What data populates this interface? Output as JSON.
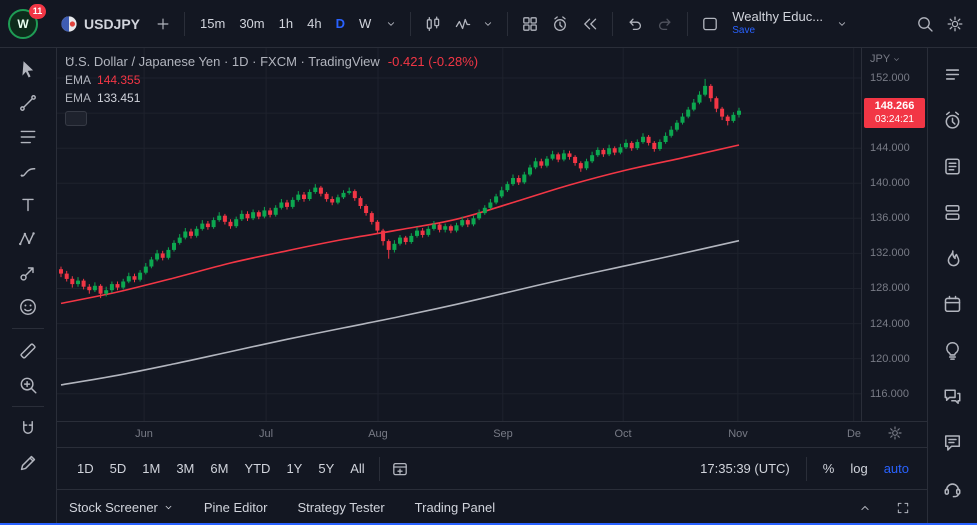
{
  "colors": {
    "bg": "#131722",
    "border": "#2a2e39",
    "text": "#d1d4dc",
    "muted": "#787b86",
    "accent": "#2962ff",
    "up": "#0ca750",
    "down": "#f23645",
    "ema_fast": "#f23645",
    "ema_slow": "#b2b5be",
    "badge": "#f23645",
    "grid": "#1e222d"
  },
  "header": {
    "notification_count": "11",
    "logo_letter": "W",
    "symbol": "USDJPY",
    "timeframes": [
      "15m",
      "30m",
      "1h",
      "4h",
      "D",
      "W"
    ],
    "active_timeframe": "D",
    "account_name": "Wealthy Educ...",
    "save_label": "Save"
  },
  "left_toolbar": {
    "tools": [
      "cursor-icon",
      "trend-line-icon",
      "fib-retracement-icon",
      "brush-icon",
      "text-icon",
      "xabcd-pattern-icon",
      "forecast-icon",
      "emoji-icon",
      "divider",
      "ruler-icon",
      "zoom-icon",
      "divider",
      "magnet-icon",
      "edit-icon"
    ]
  },
  "right_sidebar": {
    "panels": [
      "watchlist-icon",
      "alerts-icon",
      "news-icon",
      "object-tree-icon",
      "hotlists-icon",
      "calendar-icon",
      "ideas-icon",
      "chats-icon",
      "comments-icon",
      "support-icon"
    ]
  },
  "chart": {
    "legend": {
      "title": "U.S. Dollar / Japanese Yen · 1D · FXCM · TradingView",
      "change": "-0.421 (-0.28%)",
      "indicators": [
        {
          "label": "EMA",
          "value": "144.355"
        },
        {
          "label": "EMA",
          "value": "133.451"
        }
      ]
    },
    "price_scale": {
      "currency": "JPY",
      "last_price": "148.266",
      "countdown": "03:24:21"
    }
  },
  "chart_data": {
    "type": "candlestick",
    "symbol": "USDJPY",
    "interval": "1D",
    "title": "U.S. Dollar / Japanese Yen",
    "y_axis": {
      "ticks": [
        152,
        148,
        144,
        140,
        136,
        132,
        128,
        124,
        120,
        116
      ],
      "decimals": 3
    },
    "x_axis": {
      "labels": [
        "Jun",
        "Jul",
        "Aug",
        "Sep",
        "Oct",
        "Nov",
        "De"
      ],
      "candle_index": [
        14.7,
        36.3,
        56.1,
        78.2,
        99.5,
        119.8,
        140.3
      ]
    },
    "last_price": 148.266,
    "change": -0.421,
    "change_pct": "-0.28%",
    "candles": [
      [
        130.2,
        130.5,
        129.3,
        129.7
      ],
      [
        129.7,
        130.0,
        128.8,
        129.1
      ],
      [
        129.1,
        129.4,
        128.1,
        128.5
      ],
      [
        128.5,
        129.3,
        128.2,
        128.9
      ],
      [
        128.9,
        129.1,
        127.9,
        128.2
      ],
      [
        128.2,
        128.5,
        127.4,
        127.8
      ],
      [
        127.8,
        128.7,
        127.6,
        128.3
      ],
      [
        128.3,
        128.5,
        126.9,
        127.4
      ],
      [
        127.4,
        128.2,
        127.1,
        127.8
      ],
      [
        127.8,
        128.8,
        127.5,
        128.5
      ],
      [
        128.5,
        128.8,
        127.8,
        128.1
      ],
      [
        128.1,
        129.1,
        127.9,
        128.8
      ],
      [
        128.8,
        129.8,
        128.6,
        129.4
      ],
      [
        129.4,
        129.7,
        128.7,
        129.0
      ],
      [
        129.0,
        130.1,
        128.8,
        129.8
      ],
      [
        129.8,
        130.9,
        129.6,
        130.5
      ],
      [
        130.5,
        131.6,
        130.3,
        131.3
      ],
      [
        131.3,
        132.4,
        131.1,
        132.0
      ],
      [
        132.0,
        132.3,
        131.2,
        131.5
      ],
      [
        131.5,
        132.7,
        131.3,
        132.4
      ],
      [
        132.4,
        133.5,
        132.2,
        133.2
      ],
      [
        133.2,
        134.2,
        133.0,
        133.8
      ],
      [
        133.8,
        134.9,
        133.6,
        134.5
      ],
      [
        134.5,
        134.8,
        133.7,
        134.0
      ],
      [
        134.0,
        135.1,
        133.8,
        134.8
      ],
      [
        134.8,
        135.8,
        134.6,
        135.4
      ],
      [
        135.4,
        135.7,
        134.7,
        135.0
      ],
      [
        135.0,
        136.1,
        134.8,
        135.8
      ],
      [
        135.8,
        136.7,
        135.6,
        136.3
      ],
      [
        136.3,
        136.5,
        135.3,
        135.6
      ],
      [
        135.6,
        135.9,
        134.8,
        135.1
      ],
      [
        135.1,
        136.2,
        134.9,
        135.9
      ],
      [
        135.9,
        136.9,
        135.7,
        136.5
      ],
      [
        136.5,
        136.8,
        135.7,
        136.0
      ],
      [
        136.0,
        137.0,
        135.8,
        136.7
      ],
      [
        136.7,
        136.9,
        135.9,
        136.2
      ],
      [
        136.2,
        137.3,
        136.0,
        136.9
      ],
      [
        136.9,
        137.2,
        136.1,
        136.4
      ],
      [
        136.4,
        137.5,
        136.2,
        137.2
      ],
      [
        137.2,
        138.2,
        137.0,
        137.8
      ],
      [
        137.8,
        138.1,
        137.0,
        137.3
      ],
      [
        137.3,
        138.4,
        137.1,
        138.1
      ],
      [
        138.1,
        139.1,
        137.9,
        138.7
      ],
      [
        138.7,
        139.0,
        137.9,
        138.2
      ],
      [
        138.2,
        139.3,
        138.0,
        139.0
      ],
      [
        139.0,
        139.9,
        138.8,
        139.5
      ],
      [
        139.5,
        139.7,
        138.5,
        138.8
      ],
      [
        138.8,
        139.0,
        137.9,
        138.2
      ],
      [
        138.2,
        138.5,
        137.5,
        137.8
      ],
      [
        137.8,
        138.7,
        137.6,
        138.4
      ],
      [
        138.4,
        139.2,
        138.2,
        138.9
      ],
      [
        138.9,
        139.5,
        138.7,
        139.1
      ],
      [
        139.1,
        139.3,
        138.0,
        138.3
      ],
      [
        138.3,
        138.5,
        137.1,
        137.4
      ],
      [
        137.4,
        137.6,
        136.3,
        136.6
      ],
      [
        136.6,
        136.8,
        135.3,
        135.6
      ],
      [
        135.6,
        135.8,
        134.2,
        134.6
      ],
      [
        134.6,
        134.8,
        132.9,
        133.4
      ],
      [
        133.4,
        133.6,
        131.4,
        132.4
      ],
      [
        132.4,
        133.5,
        132.1,
        133.1
      ],
      [
        133.1,
        134.1,
        132.9,
        133.8
      ],
      [
        133.8,
        134.0,
        133.0,
        133.3
      ],
      [
        133.3,
        134.3,
        133.1,
        134.0
      ],
      [
        134.0,
        135.0,
        133.8,
        134.6
      ],
      [
        134.6,
        134.9,
        133.8,
        134.1
      ],
      [
        134.1,
        135.1,
        133.9,
        134.8
      ],
      [
        134.8,
        135.7,
        134.6,
        135.3
      ],
      [
        135.3,
        135.5,
        134.4,
        134.7
      ],
      [
        134.7,
        135.4,
        134.4,
        135.1
      ],
      [
        135.1,
        135.3,
        134.3,
        134.6
      ],
      [
        134.6,
        135.5,
        134.4,
        135.2
      ],
      [
        135.2,
        136.2,
        135.0,
        135.8
      ],
      [
        135.8,
        136.0,
        135.0,
        135.3
      ],
      [
        135.3,
        136.3,
        135.1,
        136.0
      ],
      [
        136.0,
        137.0,
        135.8,
        136.6
      ],
      [
        136.6,
        137.5,
        136.4,
        137.2
      ],
      [
        137.2,
        138.2,
        137.0,
        137.8
      ],
      [
        137.8,
        138.8,
        137.6,
        138.5
      ],
      [
        138.5,
        139.6,
        138.3,
        139.2
      ],
      [
        139.2,
        140.2,
        139.0,
        139.9
      ],
      [
        139.9,
        141.0,
        139.7,
        140.6
      ],
      [
        140.6,
        140.9,
        139.8,
        140.1
      ],
      [
        140.1,
        141.3,
        139.9,
        141.0
      ],
      [
        141.0,
        142.1,
        140.8,
        141.8
      ],
      [
        141.8,
        142.9,
        141.6,
        142.5
      ],
      [
        142.5,
        142.8,
        141.7,
        142.0
      ],
      [
        142.0,
        143.1,
        141.8,
        142.8
      ],
      [
        142.8,
        143.7,
        142.6,
        143.3
      ],
      [
        143.3,
        143.5,
        142.4,
        142.7
      ],
      [
        142.7,
        143.8,
        142.5,
        143.4
      ],
      [
        143.4,
        143.7,
        142.7,
        143.0
      ],
      [
        143.0,
        143.2,
        142.0,
        142.3
      ],
      [
        142.3,
        142.5,
        141.3,
        141.7
      ],
      [
        141.7,
        142.8,
        141.5,
        142.5
      ],
      [
        142.5,
        143.6,
        142.3,
        143.2
      ],
      [
        143.2,
        144.1,
        143.0,
        143.8
      ],
      [
        143.8,
        144.0,
        143.0,
        143.3
      ],
      [
        143.3,
        144.4,
        143.1,
        144.0
      ],
      [
        144.0,
        144.2,
        143.2,
        143.5
      ],
      [
        143.5,
        144.5,
        143.3,
        144.1
      ],
      [
        144.1,
        145.0,
        143.9,
        144.6
      ],
      [
        144.6,
        144.8,
        143.7,
        144.0
      ],
      [
        144.0,
        145.0,
        143.8,
        144.7
      ],
      [
        144.7,
        145.7,
        144.5,
        145.3
      ],
      [
        145.3,
        145.5,
        144.3,
        144.6
      ],
      [
        144.6,
        144.8,
        143.6,
        143.9
      ],
      [
        143.9,
        145.0,
        143.7,
        144.7
      ],
      [
        144.7,
        145.8,
        144.5,
        145.4
      ],
      [
        145.4,
        146.5,
        145.2,
        146.1
      ],
      [
        146.1,
        147.2,
        145.9,
        146.9
      ],
      [
        146.9,
        148.0,
        146.7,
        147.6
      ],
      [
        147.6,
        148.7,
        147.4,
        148.4
      ],
      [
        148.4,
        149.6,
        148.2,
        149.2
      ],
      [
        149.2,
        150.5,
        149.0,
        150.1
      ],
      [
        150.1,
        151.9,
        149.9,
        151.1
      ],
      [
        151.1,
        151.3,
        149.3,
        149.7
      ],
      [
        149.7,
        149.9,
        148.1,
        148.5
      ],
      [
        148.5,
        148.7,
        147.2,
        147.6
      ],
      [
        147.6,
        147.8,
        146.6,
        147.1
      ],
      [
        147.1,
        148.1,
        146.9,
        147.8
      ],
      [
        147.8,
        148.6,
        147.5,
        148.27
      ]
    ],
    "overlays": [
      {
        "id": "ema1",
        "name": "EMA",
        "color": "#f23645",
        "last_value": 144.355,
        "step": 10,
        "values": [
          126.3,
          127.6,
          129.2,
          130.9,
          132.3,
          133.6,
          134.7,
          135.9,
          137.8,
          139.8,
          141.5,
          142.9,
          144.36
        ]
      },
      {
        "id": "ema2",
        "name": "EMA",
        "color": "#b2b5be",
        "last_value": 133.451,
        "step": 10,
        "values": [
          117.0,
          118.1,
          119.4,
          120.8,
          122.2,
          123.5,
          124.8,
          126.2,
          127.7,
          129.2,
          130.6,
          132.0,
          133.45
        ]
      }
    ]
  },
  "range_toolbar": {
    "ranges": [
      "1D",
      "5D",
      "1M",
      "3M",
      "6M",
      "YTD",
      "1Y",
      "5Y",
      "All"
    ],
    "clock": "17:35:39 (UTC)",
    "percent_label": "%",
    "log_label": "log",
    "auto_label": "auto"
  },
  "footer": {
    "tabs": [
      "Stock Screener",
      "Pine Editor",
      "Strategy Tester",
      "Trading Panel"
    ]
  }
}
